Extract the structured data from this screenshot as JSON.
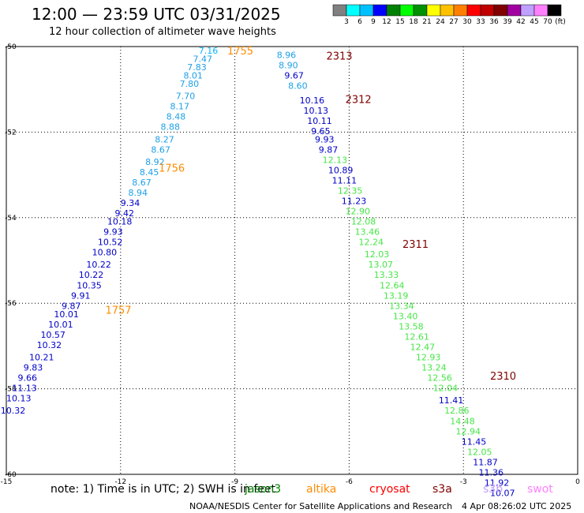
{
  "header": {
    "title": "12:00 — 23:59 UTC 03/31/2025",
    "subtitle": "12 hour collection of altimeter wave heights"
  },
  "legend_scale": {
    "colors": [
      "#808080",
      "#00ffff",
      "#00c0ff",
      "#0000ff",
      "#008000",
      "#00ff00",
      "#009000",
      "#ffff00",
      "#ffc000",
      "#ff8000",
      "#ff0000",
      "#c00000",
      "#800000",
      "#a000a0",
      "#c0a0ff",
      "#ff80ff",
      "#000000"
    ],
    "labels": [
      "3",
      "6",
      "9",
      "12",
      "15",
      "18",
      "21",
      "24",
      "27",
      "30",
      "33",
      "36",
      "39",
      "42",
      "45",
      "70"
    ],
    "unit": "(ft)"
  },
  "axes": {
    "x_ticks": [
      "-15",
      "-12",
      "-9",
      "-6",
      "-3",
      "0"
    ],
    "y_ticks": [
      "-50",
      "-52",
      "-54",
      "-56",
      "-58",
      "-60"
    ]
  },
  "chart_data": {
    "type": "map",
    "xlim": [
      -15,
      0
    ],
    "ylim": [
      -60.3,
      -49.9
    ],
    "grid": true,
    "passes": [
      {
        "label": "1755",
        "label_color": "#ff8c00",
        "label_at": [
          -9.2,
          -50.0
        ]
      },
      {
        "label": "1756",
        "label_color": "#ff8c00",
        "label_at": [
          -11.0,
          -52.85
        ]
      },
      {
        "label": "1757",
        "label_color": "#ff8c00",
        "label_at": [
          -12.4,
          -56.3
        ]
      },
      {
        "label": "2313",
        "label_color": "#800000",
        "label_at": [
          -6.6,
          -50.12
        ]
      },
      {
        "label": "2312",
        "label_color": "#800000",
        "label_at": [
          -6.1,
          -51.18
        ]
      },
      {
        "label": "2311",
        "label_color": "#800000",
        "label_at": [
          -4.6,
          -54.7
        ]
      },
      {
        "label": "2310",
        "label_color": "#800000",
        "label_at": [
          -2.3,
          -57.9
        ]
      }
    ],
    "points": [
      {
        "v": "7.16",
        "x": -9.95,
        "y": -50.0,
        "c": "#00b4ff"
      },
      {
        "v": "7.47",
        "x": -10.1,
        "y": -50.2,
        "c": "#1ea0e6"
      },
      {
        "v": "7.83",
        "x": -10.25,
        "y": -50.4,
        "c": "#1ea0e6"
      },
      {
        "v": "8.01",
        "x": -10.35,
        "y": -50.6,
        "c": "#1ea0e6"
      },
      {
        "v": "7.80",
        "x": -10.45,
        "y": -50.8,
        "c": "#1ea0e6"
      },
      {
        "v": "7.70",
        "x": -10.55,
        "y": -51.1,
        "c": "#1ea0e6"
      },
      {
        "v": "8.17",
        "x": -10.7,
        "y": -51.35,
        "c": "#1ea0e6"
      },
      {
        "v": "8.48",
        "x": -10.8,
        "y": -51.6,
        "c": "#1ea0e6"
      },
      {
        "v": "8.88",
        "x": -10.95,
        "y": -51.85,
        "c": "#1ea0e6"
      },
      {
        "v": "8.27",
        "x": -11.1,
        "y": -52.15,
        "c": "#1ea0e6"
      },
      {
        "v": "8.67",
        "x": -11.2,
        "y": -52.4,
        "c": "#1ea0e6"
      },
      {
        "v": "8.92",
        "x": -11.35,
        "y": -52.7,
        "c": "#1ea0e6"
      },
      {
        "v": "8.45",
        "x": -11.5,
        "y": -52.95,
        "c": "#1ea0e6"
      },
      {
        "v": "8.67",
        "x": -11.7,
        "y": -53.2,
        "c": "#1ea0e6"
      },
      {
        "v": "8.94",
        "x": -11.8,
        "y": -53.45,
        "c": "#1ea0e6"
      },
      {
        "v": "9.34",
        "x": -12.0,
        "y": -53.7,
        "c": "#0000c8"
      },
      {
        "v": "9.42",
        "x": -12.15,
        "y": -53.95,
        "c": "#0000c8"
      },
      {
        "v": "10.18",
        "x": -12.35,
        "y": -54.15,
        "c": "#0000c8"
      },
      {
        "v": "9.93",
        "x": -12.45,
        "y": -54.4,
        "c": "#0000c8"
      },
      {
        "v": "10.52",
        "x": -12.6,
        "y": -54.65,
        "c": "#0000c8"
      },
      {
        "v": "10.80",
        "x": -12.75,
        "y": -54.9,
        "c": "#0000c8"
      },
      {
        "v": "10.22",
        "x": -12.9,
        "y": -55.2,
        "c": "#0000c8"
      },
      {
        "v": "10.22",
        "x": -13.1,
        "y": -55.45,
        "c": "#0000c8"
      },
      {
        "v": "10.35",
        "x": -13.15,
        "y": -55.7,
        "c": "#0000c8"
      },
      {
        "v": "9.91",
        "x": -13.3,
        "y": -55.95,
        "c": "#0000c8"
      },
      {
        "v": "9.87",
        "x": -13.55,
        "y": -56.2,
        "c": "#0000c8"
      },
      {
        "v": "10.01",
        "x": -13.75,
        "y": -56.4,
        "c": "#0000c8"
      },
      {
        "v": "10.01",
        "x": -13.9,
        "y": -56.65,
        "c": "#0000c8"
      },
      {
        "v": "10.57",
        "x": -14.1,
        "y": -56.9,
        "c": "#0000c8"
      },
      {
        "v": "10.32",
        "x": -14.2,
        "y": -57.15,
        "c": "#0000c8"
      },
      {
        "v": "10.21",
        "x": -14.4,
        "y": -57.45,
        "c": "#0000c8"
      },
      {
        "v": "9.83",
        "x": -14.55,
        "y": -57.7,
        "c": "#0000c8"
      },
      {
        "v": "9.66",
        "x": -14.7,
        "y": -57.95,
        "c": "#0000c8"
      },
      {
        "v": "11.13",
        "x": -14.85,
        "y": -58.2,
        "c": "#0000c8"
      },
      {
        "v": "10.13",
        "x": -15.0,
        "y": -58.45,
        "c": "#0000c8"
      },
      {
        "v": "10.32",
        "x": -15.15,
        "y": -58.75,
        "c": "#0000c8"
      },
      {
        "v": "8.96",
        "x": -7.9,
        "y": -50.1,
        "c": "#1ea0e6"
      },
      {
        "v": "8.90",
        "x": -7.85,
        "y": -50.35,
        "c": "#1ea0e6"
      },
      {
        "v": "9.67",
        "x": -7.7,
        "y": -50.6,
        "c": "#0000c8"
      },
      {
        "v": "8.60",
        "x": -7.6,
        "y": -50.85,
        "c": "#1ea0e6"
      },
      {
        "v": "10.16",
        "x": -7.3,
        "y": -51.2,
        "c": "#0000c8"
      },
      {
        "v": "10.13",
        "x": -7.2,
        "y": -51.45,
        "c": "#0000c8"
      },
      {
        "v": "10.11",
        "x": -7.1,
        "y": -51.7,
        "c": "#0000c8"
      },
      {
        "v": "9.65",
        "x": -7.0,
        "y": -51.95,
        "c": "#0000c8"
      },
      {
        "v": "9.93",
        "x": -6.9,
        "y": -52.15,
        "c": "#0000c8"
      },
      {
        "v": "9.87",
        "x": -6.8,
        "y": -52.4,
        "c": "#0000c8"
      },
      {
        "v": "12.13",
        "x": -6.7,
        "y": -52.65,
        "c": "#46e646"
      },
      {
        "v": "10.89",
        "x": -6.55,
        "y": -52.9,
        "c": "#0000c8"
      },
      {
        "v": "11.11",
        "x": -6.45,
        "y": -53.15,
        "c": "#0000c8"
      },
      {
        "v": "12.35",
        "x": -6.3,
        "y": -53.4,
        "c": "#46e646"
      },
      {
        "v": "11.23",
        "x": -6.2,
        "y": -53.65,
        "c": "#0000c8"
      },
      {
        "v": "12.90",
        "x": -6.1,
        "y": -53.9,
        "c": "#46e646"
      },
      {
        "v": "12.08",
        "x": -5.95,
        "y": -54.15,
        "c": "#46e646"
      },
      {
        "v": "13.46",
        "x": -5.85,
        "y": -54.4,
        "c": "#46e646"
      },
      {
        "v": "12.24",
        "x": -5.75,
        "y": -54.65,
        "c": "#46e646"
      },
      {
        "v": "12.03",
        "x": -5.6,
        "y": -54.95,
        "c": "#46e646"
      },
      {
        "v": "13.07",
        "x": -5.5,
        "y": -55.2,
        "c": "#46e646"
      },
      {
        "v": "13.33",
        "x": -5.35,
        "y": -55.45,
        "c": "#46e646"
      },
      {
        "v": "12.64",
        "x": -5.2,
        "y": -55.7,
        "c": "#46e646"
      },
      {
        "v": "13.19",
        "x": -5.1,
        "y": -55.95,
        "c": "#46e646"
      },
      {
        "v": "13.34",
        "x": -4.95,
        "y": -56.2,
        "c": "#46e646"
      },
      {
        "v": "13.40",
        "x": -4.85,
        "y": -56.45,
        "c": "#46e646"
      },
      {
        "v": "13.58",
        "x": -4.7,
        "y": -56.7,
        "c": "#46e646"
      },
      {
        "v": "12.61",
        "x": -4.55,
        "y": -56.95,
        "c": "#46e646"
      },
      {
        "v": "12.47",
        "x": -4.4,
        "y": -57.2,
        "c": "#46e646"
      },
      {
        "v": "12.93",
        "x": -4.25,
        "y": -57.45,
        "c": "#46e646"
      },
      {
        "v": "13.24",
        "x": -4.1,
        "y": -57.7,
        "c": "#46e646"
      },
      {
        "v": "12.56",
        "x": -3.95,
        "y": -57.95,
        "c": "#46e646"
      },
      {
        "v": "12.04",
        "x": -3.8,
        "y": -58.2,
        "c": "#46e646"
      },
      {
        "v": "11.41",
        "x": -3.65,
        "y": -58.5,
        "c": "#0000c8"
      },
      {
        "v": "12.86",
        "x": -3.5,
        "y": -58.75,
        "c": "#46e646"
      },
      {
        "v": "14.48",
        "x": -3.35,
        "y": -59.0,
        "c": "#46e646"
      },
      {
        "v": "12.94",
        "x": -3.2,
        "y": -59.25,
        "c": "#46e646"
      },
      {
        "v": "11.45",
        "x": -3.05,
        "y": -59.5,
        "c": "#0000c8"
      },
      {
        "v": "12.05",
        "x": -2.9,
        "y": -59.75,
        "c": "#46e646"
      },
      {
        "v": "11.87",
        "x": -2.75,
        "y": -60.0,
        "c": "#0000c8"
      },
      {
        "v": "11.36",
        "x": -2.6,
        "y": -60.25,
        "c": "#0000c8"
      },
      {
        "v": "11.92",
        "x": -2.45,
        "y": -60.5,
        "c": "#0000c8"
      },
      {
        "v": "10.07",
        "x": -2.3,
        "y": -60.75,
        "c": "#0000c8"
      }
    ]
  },
  "footer": {
    "note": "note:  1) Time is in UTC;  2) SWH is in feet",
    "satellites": [
      {
        "name": "jason3",
        "color": "#008000"
      },
      {
        "name": "altika",
        "color": "#ff8c00"
      },
      {
        "name": "cryosat",
        "color": "#ff0000"
      },
      {
        "name": "s3a",
        "color": "#800000"
      },
      {
        "name": "s3b",
        "color": "#c0a0ff"
      },
      {
        "name": "swot",
        "color": "#ff80ff"
      }
    ],
    "credit": "NOAA/NESDIS Center for Satellite Applications and Research",
    "timestamp": "4 Apr 08:26:02 UTC 2025"
  }
}
